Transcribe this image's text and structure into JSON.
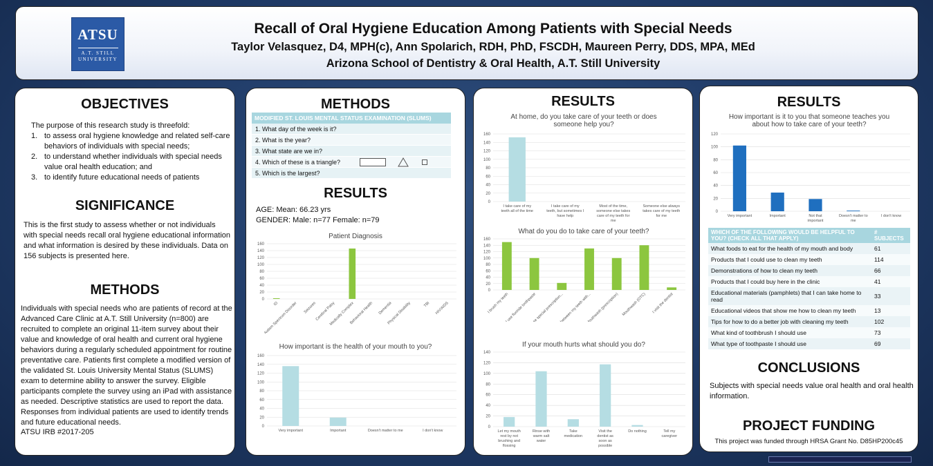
{
  "header": {
    "logo": {
      "big": "ATSU",
      "line1": "A.T. STILL",
      "line2": "UNIVERSITY"
    },
    "title": "Recall of Oral Hygiene Education Among Patients with Special Needs",
    "authors": "Taylor Velasquez, D4, MPH(c), Ann Spolarich, RDH, PhD, FSCDH,  Maureen Perry, DDS, MPA, MEd",
    "affiliation": "Arizona School of Dentistry & Oral Health,  A.T. Still University"
  },
  "col1": {
    "objectives_heading": "OBJECTIVES",
    "objectives_intro": "The purpose of this research study is threefold:",
    "objectives": [
      {
        "num": "1.",
        "text": "to assess oral hygiene knowledge and related self-care behaviors of individuals with special needs;"
      },
      {
        "num": "2.",
        "text": "to understand whether individuals with special needs value oral health education; and"
      },
      {
        "num": "3.",
        "text": "to identify future educational needs of patients"
      }
    ],
    "significance_heading": "SIGNIFICANCE",
    "significance_text": "This is the first study to assess whether or not individuals with special needs recall oral hygiene educational information and what information is desired by these individuals. Data on 156 subjects is presented here.",
    "methods_heading": "METHODS",
    "methods_text": "Individuals with special needs who are patients of record at the Advanced Care Clinic at A.T. Still University (n=800) are recruited to complete an original 11-item survey about their value and knowledge of oral health and current oral hygiene behaviors during a regularly scheduled appointment for routine preventative care. Patients first complete a modified version of the validated St. Louis University Mental Status (SLUMS) exam to determine ability to answer the survey. Eligible participants complete the survey using an iPad with assistance as needed. Descriptive statistics are used to report the data. Responses from individual patients are used to identify trends and future educational needs.",
    "irb": "ATSU IRB #2017-205"
  },
  "col2": {
    "methods_heading": "METHODS",
    "slums_heading": "MODIFIED ST. LOUIS MENTAL STATUS EXAMINATION (SLUMS)",
    "slums_questions": [
      "1.  What day of the week is it?",
      "2.  What is the year?",
      "3.  What state are we in?",
      "4.  Which of these is a triangle?",
      "5.  Which is the largest?"
    ],
    "results_heading": "RESULTS",
    "age": "AGE:  Mean: 66.23 yrs",
    "gender": "GENDER:  Male:  n=77   Female:  n=79"
  },
  "col3": {
    "results_heading": "RESULTS"
  },
  "col4": {
    "results_heading": "RESULTS",
    "table_header": [
      "WHICH OF THE FOLLOWING WOULD BE HELPFUL TO YOU? (CHECK ALL THAT APPLY)",
      "# SUBJECTS"
    ],
    "table_rows": [
      [
        "What foods to eat for the health of my mouth and body",
        "61"
      ],
      [
        "Products that I could use to clean my teeth",
        "114"
      ],
      [
        "Demonstrations of how to clean my teeth",
        "66"
      ],
      [
        "Products that I could buy here in the clinic",
        "41"
      ],
      [
        "Educational materials (pamphlets) that I can take home to read",
        "33"
      ],
      [
        "Educational videos that show me how to clean my teeth",
        "13"
      ],
      [
        "Tips for how to do a better job with cleaning my teeth",
        "102"
      ],
      [
        "What kind of toothbrush I should use",
        "73"
      ],
      [
        "What type of toothpaste I should use",
        "69"
      ]
    ],
    "conclusions_heading": "CONCLUSIONS",
    "conclusions_text": "Subjects with special needs value oral health and oral health information.",
    "funding_heading": "PROJECT FUNDING",
    "funding_text": "This project was funded through HRSA Grant No. D85HP200c45"
  },
  "colors": {
    "teal": "#a8d6df",
    "teal_bar": "#b5dde3",
    "green": "#8cc63f",
    "blue": "#1f6fbf"
  },
  "chart_data": [
    {
      "id": "diagnosis",
      "type": "bar",
      "title": "Patient Diagnosis",
      "categories": [
        "ID",
        "Autism Spectrum Disorder",
        "Seizures",
        "Cerebral Palsy",
        "Medically Complex",
        "Behavioral Health",
        "Dementia",
        "Physical Disability",
        "TBI",
        "HIV/AIDS"
      ],
      "values": [
        2,
        0,
        0,
        0,
        146,
        0,
        0,
        0,
        0,
        0
      ],
      "ylim": [
        0,
        160
      ],
      "yticks": [
        0,
        20,
        40,
        60,
        80,
        100,
        120,
        140,
        160
      ],
      "color": "#8cc63f"
    },
    {
      "id": "importance_health",
      "type": "bar",
      "title": "How important is the health of your mouth to you?",
      "categories": [
        "Very important",
        "Important",
        "Doesn't matter to me",
        "I don't know"
      ],
      "values": [
        136,
        19,
        0,
        0
      ],
      "ylim": [
        0,
        160
      ],
      "yticks": [
        0,
        20,
        40,
        60,
        80,
        100,
        120,
        140,
        160
      ],
      "color": "#b5dde3"
    },
    {
      "id": "home_care",
      "type": "bar",
      "title": "At home, do you take care of your teeth or does someone help you?",
      "categories": [
        "I take care of my teeth all of the time",
        "I take care of my teeth, but sometimes I have help",
        "Most of the time, someone else takes care of my teeth for me",
        "Someone else always takes care of my teeth for me"
      ],
      "values": [
        152,
        0,
        0,
        0
      ],
      "ylim": [
        0,
        160
      ],
      "yticks": [
        0,
        20,
        40,
        60,
        80,
        100,
        120,
        140,
        160
      ],
      "color": "#b5dde3"
    },
    {
      "id": "care_actions",
      "type": "bar",
      "title": "What do you do to take care of your teeth?",
      "categories": [
        "I brush my teeth",
        "I use fluoride toothpaste",
        "I use special prescription...",
        "I clean between my teeth with...",
        "Mouthwash (prescription)",
        "Mouthwash (OTC)",
        "I visit the dentist"
      ],
      "values": [
        150,
        100,
        22,
        130,
        100,
        140,
        8
      ],
      "ylim": [
        0,
        160
      ],
      "yticks": [
        0,
        20,
        40,
        60,
        80,
        100,
        120,
        140,
        160
      ],
      "color": "#8cc63f"
    },
    {
      "id": "mouth_hurts",
      "type": "bar",
      "title": "If your mouth hurts what should you do?",
      "categories": [
        "Let my mouth rest by not brushing and flossing",
        "Rinse with warm salt water",
        "Take medication",
        "Visit the dentist as soon as possible",
        "Do nothing",
        "Tell my caregiver"
      ],
      "values": [
        18,
        104,
        14,
        117,
        3,
        0
      ],
      "ylim": [
        0,
        140
      ],
      "yticks": [
        0,
        20,
        40,
        60,
        80,
        100,
        120,
        140
      ],
      "color": "#b5dde3"
    },
    {
      "id": "importance_teach",
      "type": "bar",
      "title": "How important is it to you that someone teaches you about how to take care of your teeth?",
      "categories": [
        "Very important",
        "Important",
        "Not that important",
        "Doesn't matter to me",
        "I don't know"
      ],
      "values": [
        102,
        29,
        19,
        1,
        0
      ],
      "ylim": [
        0,
        120
      ],
      "yticks": [
        0,
        20,
        40,
        60,
        80,
        100,
        120
      ],
      "color": "#1f6fbf"
    }
  ]
}
